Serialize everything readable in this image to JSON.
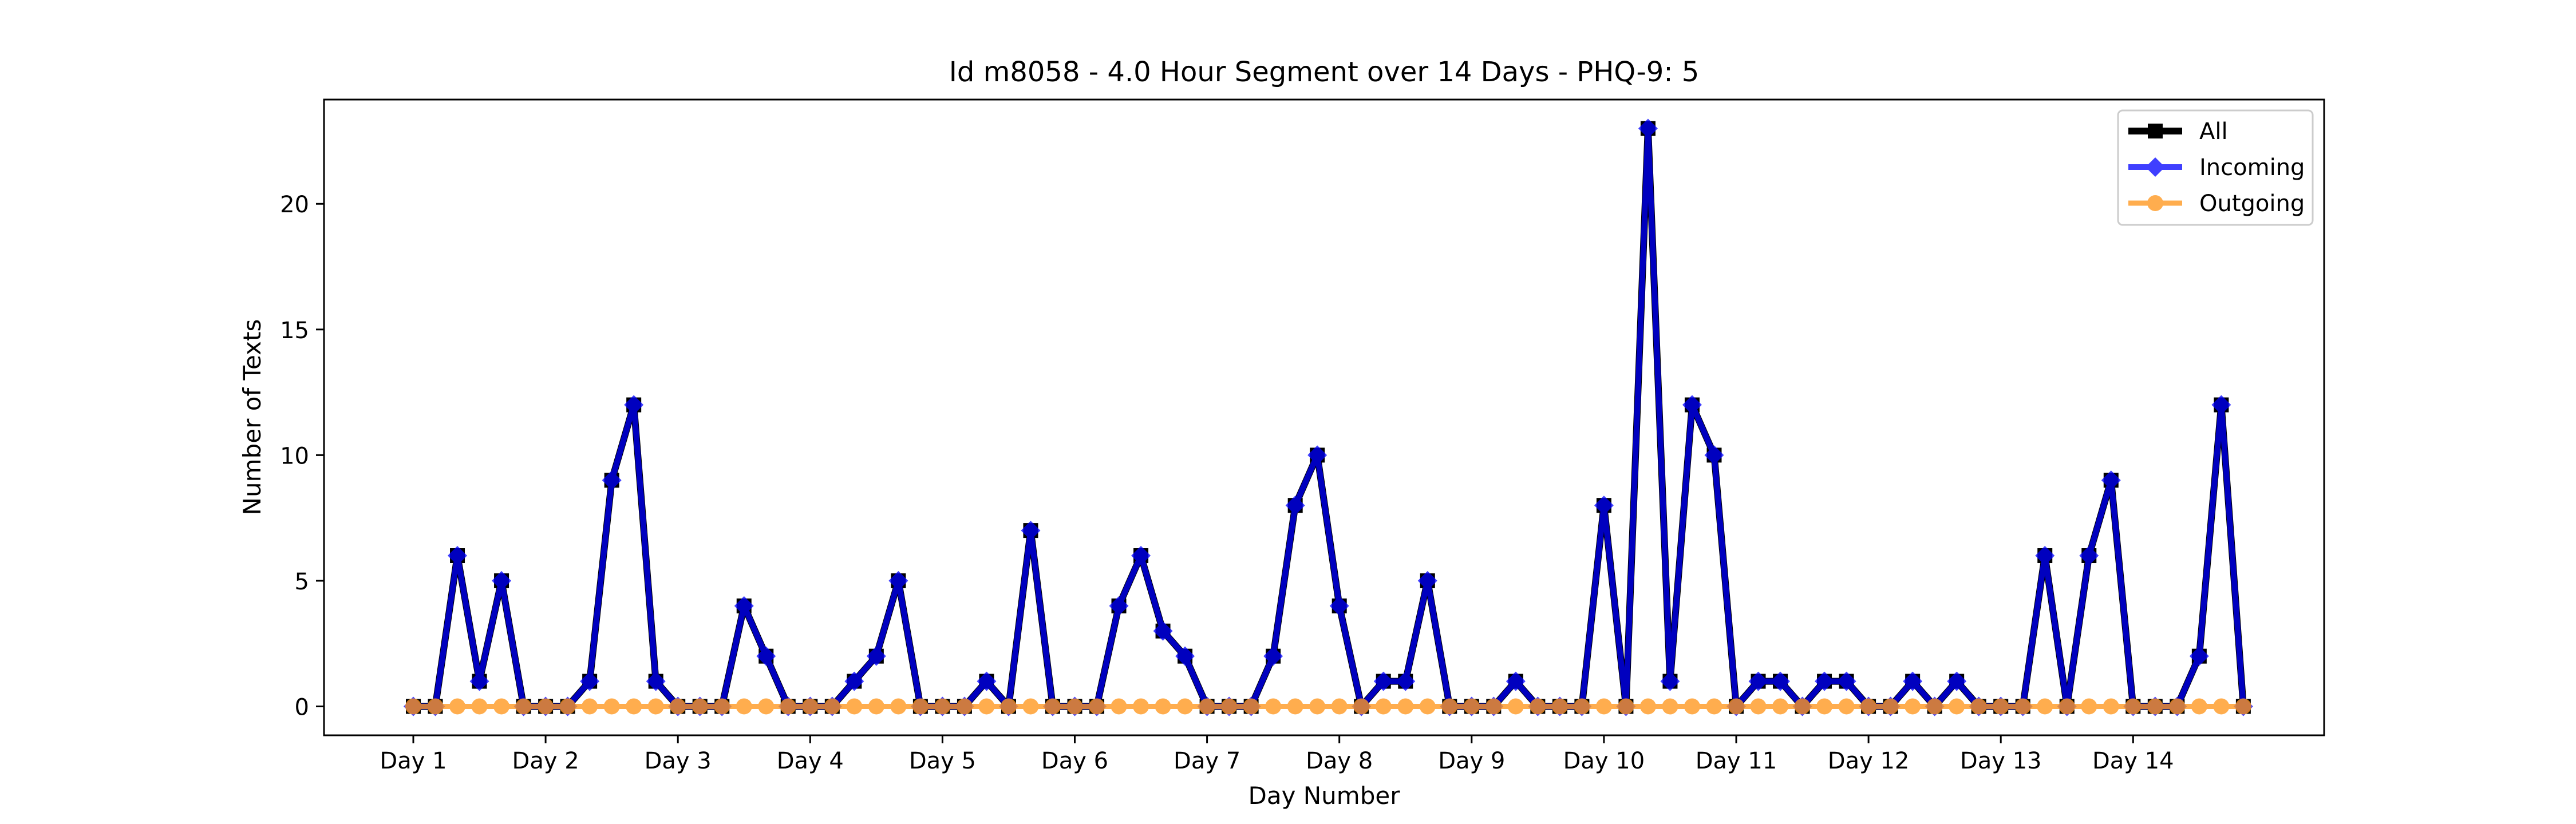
{
  "chart_data": {
    "type": "line",
    "title": "Id m8058 - 4.0 Hour Segment over 14 Days - PHQ-9: 5",
    "xlabel": "Day Number",
    "ylabel": "Number of Texts",
    "x_tick_labels": [
      "Day 1",
      "Day 2",
      "Day 3",
      "Day 4",
      "Day 5",
      "Day 6",
      "Day 7",
      "Day 8",
      "Day 9",
      "Day 10",
      "Day 11",
      "Day 12",
      "Day 13",
      "Day 14"
    ],
    "points_per_day": 6,
    "y_ticks": [
      0,
      5,
      10,
      15,
      20
    ],
    "ylim": [
      -1.15,
      24.15
    ],
    "grid": false,
    "legend_position": "top-right",
    "series": [
      {
        "name": "All",
        "color": "#000000",
        "marker": "square",
        "values": [
          0,
          0,
          6,
          1,
          5,
          0,
          0,
          0,
          1,
          9,
          12,
          1,
          0,
          0,
          0,
          4,
          2,
          0,
          0,
          0,
          1,
          2,
          5,
          0,
          0,
          0,
          1,
          0,
          7,
          0,
          0,
          0,
          4,
          6,
          3,
          2,
          0,
          0,
          0,
          2,
          8,
          10,
          4,
          0,
          1,
          1,
          5,
          0,
          0,
          0,
          1,
          0,
          0,
          0,
          8,
          0,
          23,
          1,
          12,
          10,
          0,
          1,
          1,
          0,
          1,
          1,
          0,
          0,
          1,
          0,
          1,
          0,
          0,
          0,
          6,
          0,
          6,
          9,
          0,
          0,
          0,
          2,
          12,
          0
        ]
      },
      {
        "name": "Incoming",
        "color": "#0000ff",
        "marker": "diamond",
        "values": [
          0,
          0,
          6,
          1,
          5,
          0,
          0,
          0,
          1,
          9,
          12,
          1,
          0,
          0,
          0,
          4,
          2,
          0,
          0,
          0,
          1,
          2,
          5,
          0,
          0,
          0,
          1,
          0,
          7,
          0,
          0,
          0,
          4,
          6,
          3,
          2,
          0,
          0,
          0,
          2,
          8,
          10,
          4,
          0,
          1,
          1,
          5,
          0,
          0,
          0,
          1,
          0,
          0,
          0,
          8,
          0,
          23,
          1,
          12,
          10,
          0,
          1,
          1,
          0,
          1,
          1,
          0,
          0,
          1,
          0,
          1,
          0,
          0,
          0,
          6,
          0,
          6,
          9,
          0,
          0,
          0,
          2,
          12,
          0
        ]
      },
      {
        "name": "Outgoing",
        "color": "#ff9922",
        "marker": "circle",
        "values": [
          0,
          0,
          0,
          0,
          0,
          0,
          0,
          0,
          0,
          0,
          0,
          0,
          0,
          0,
          0,
          0,
          0,
          0,
          0,
          0,
          0,
          0,
          0,
          0,
          0,
          0,
          0,
          0,
          0,
          0,
          0,
          0,
          0,
          0,
          0,
          0,
          0,
          0,
          0,
          0,
          0,
          0,
          0,
          0,
          0,
          0,
          0,
          0,
          0,
          0,
          0,
          0,
          0,
          0,
          0,
          0,
          0,
          0,
          0,
          0,
          0,
          0,
          0,
          0,
          0,
          0,
          0,
          0,
          0,
          0,
          0,
          0,
          0,
          0,
          0,
          0,
          0,
          0,
          0,
          0,
          0,
          0,
          0,
          0
        ]
      }
    ]
  }
}
